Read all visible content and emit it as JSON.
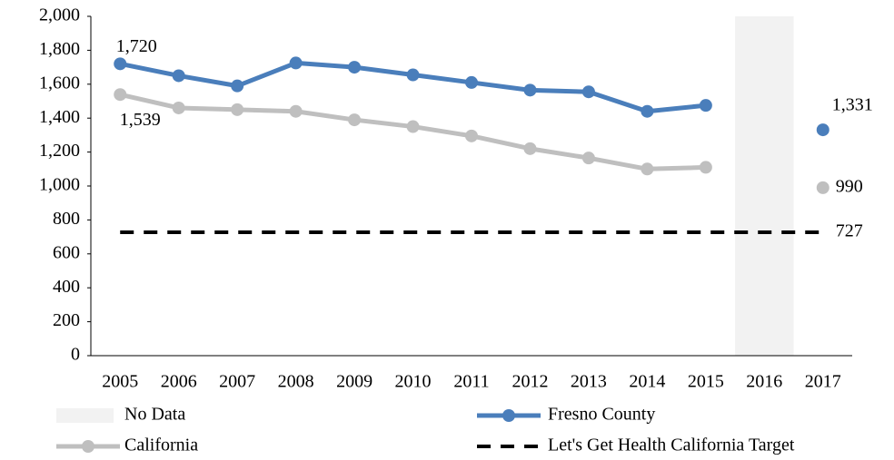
{
  "chart_data": {
    "type": "line",
    "categories": [
      "2005",
      "2006",
      "2007",
      "2008",
      "2009",
      "2010",
      "2011",
      "2012",
      "2013",
      "2014",
      "2015",
      "2016",
      "2017"
    ],
    "bands": [
      {
        "name": "No Data",
        "category": "2016",
        "color": "#f2f2f2"
      }
    ],
    "series": [
      {
        "name": "Fresno County",
        "color": "#4a7ebb",
        "marker": true,
        "dashed": false,
        "values": [
          1720,
          1650,
          1590,
          1725,
          1700,
          1655,
          1610,
          1565,
          1555,
          1440,
          1475,
          null,
          1331
        ],
        "value_labels": [
          "1,720",
          null,
          null,
          null,
          null,
          null,
          null,
          null,
          null,
          null,
          null,
          null,
          "1,331"
        ]
      },
      {
        "name": "California",
        "color": "#bfbfbf",
        "marker": true,
        "dashed": false,
        "values": [
          1539,
          1460,
          1450,
          1440,
          1390,
          1350,
          1295,
          1220,
          1165,
          1100,
          1110,
          null,
          990
        ],
        "value_labels": [
          "1,539",
          null,
          null,
          null,
          null,
          null,
          null,
          null,
          null,
          null,
          null,
          null,
          "990"
        ]
      },
      {
        "name": "Let's Get Health California Target",
        "color": "#000000",
        "marker": false,
        "dashed": true,
        "values": [
          727,
          727,
          727,
          727,
          727,
          727,
          727,
          727,
          727,
          727,
          727,
          727,
          727
        ],
        "value_labels": [
          null,
          null,
          null,
          null,
          null,
          null,
          null,
          null,
          null,
          null,
          null,
          null,
          "727"
        ]
      }
    ],
    "ylim": [
      0,
      2000
    ],
    "yticks": [
      0,
      200,
      400,
      600,
      800,
      {
        "value": 1000,
        "label": "1,000"
      },
      {
        "value": 1200,
        "label": "1,200"
      },
      {
        "value": 1400,
        "label": "1,400"
      },
      {
        "value": 1600,
        "label": "1,600"
      },
      {
        "value": 1800,
        "label": "1,800"
      },
      {
        "value": 2000,
        "label": "2,000"
      }
    ],
    "grid": false,
    "legend": "bottom"
  }
}
